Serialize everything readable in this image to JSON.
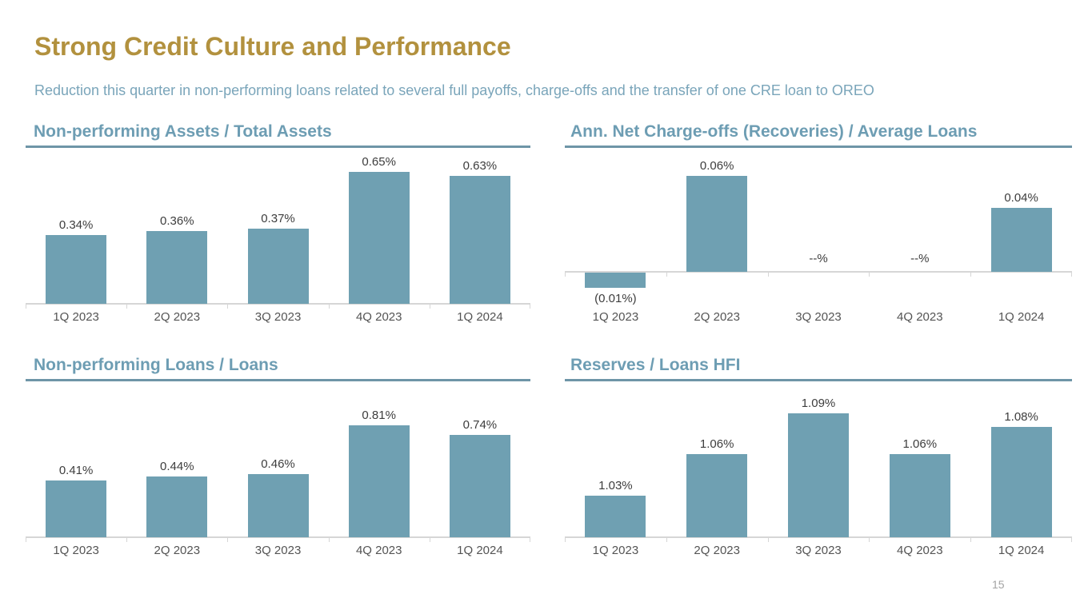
{
  "slide": {
    "title": "Strong Credit Culture and Performance",
    "subtitle": "Reduction this quarter in non-performing loans related to several full payoffs, charge-offs and the transfer of one CRE loan to OREO",
    "page_number": "15"
  },
  "colors": {
    "title_gold": "#b2913e",
    "subtitle_blue": "#7aa5ba",
    "chart_title_blue": "#6d9db3",
    "underline_blue": "#6e95a7",
    "bar_fill": "#6fa0b2",
    "axis_gray": "#d6d6d6",
    "data_label": "#3d3d3d",
    "category_label": "#545454",
    "page_number_gray": "#a3a3a3"
  },
  "chart_data": [
    {
      "id": "non-performing-assets-total-assets",
      "type": "bar",
      "title": "Non-performing Assets / Total Assets",
      "categories": [
        "1Q 2023",
        "2Q 2023",
        "3Q 2023",
        "4Q 2023",
        "1Q 2024"
      ],
      "values": [
        0.34,
        0.36,
        0.37,
        0.65,
        0.63
      ],
      "labels": [
        "0.34%",
        "0.36%",
        "0.37%",
        "0.65%",
        "0.63%"
      ],
      "ylabel": "",
      "xlabel": "",
      "ylim": [
        0,
        0.75
      ],
      "grid": false,
      "legend": false
    },
    {
      "id": "net-charge-offs-average-loans",
      "type": "bar",
      "title": "Ann. Net Charge-offs (Recoveries) / Average Loans",
      "categories": [
        "1Q 2023",
        "2Q 2023",
        "3Q 2023",
        "4Q 2023",
        "1Q 2024"
      ],
      "values": [
        -0.01,
        0.06,
        0,
        0,
        0.04
      ],
      "labels": [
        "(0.01%)",
        "0.06%",
        "--%",
        "--%",
        "0.04%"
      ],
      "ylabel": "",
      "xlabel": "",
      "ylim": [
        -0.02,
        0.075
      ],
      "grid": false,
      "legend": false
    },
    {
      "id": "non-performing-loans-loans",
      "type": "bar",
      "title": "Non-performing Loans / Loans",
      "categories": [
        "1Q 2023",
        "2Q 2023",
        "3Q 2023",
        "4Q 2023",
        "1Q 2024"
      ],
      "values": [
        0.41,
        0.44,
        0.46,
        0.81,
        0.74
      ],
      "labels": [
        "0.41%",
        "0.44%",
        "0.46%",
        "0.81%",
        "0.74%"
      ],
      "ylabel": "",
      "xlabel": "",
      "ylim": [
        0,
        1.1
      ],
      "grid": false,
      "legend": false
    },
    {
      "id": "reserves-loans-hfi",
      "type": "bar",
      "title": "Reserves / Loans HFI",
      "categories": [
        "1Q 2023",
        "2Q 2023",
        "3Q 2023",
        "4Q 2023",
        "1Q 2024"
      ],
      "values": [
        1.03,
        1.06,
        1.09,
        1.06,
        1.08
      ],
      "labels": [
        "1.03%",
        "1.06%",
        "1.09%",
        "1.06%",
        "1.08%"
      ],
      "ylabel": "",
      "xlabel": "",
      "ylim": [
        1.0,
        1.11
      ],
      "grid": false,
      "legend": false
    }
  ]
}
